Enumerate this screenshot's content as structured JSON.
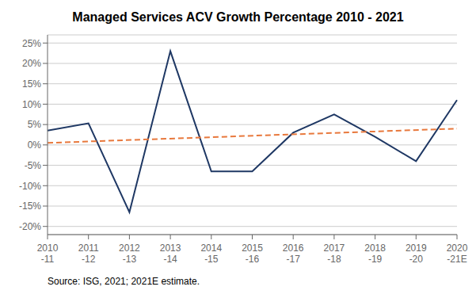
{
  "chart_data": {
    "type": "line",
    "title": "Managed Services ACV Growth Percentage 2010 - 2021",
    "categories": [
      "2010\n-11",
      "2011\n-12",
      "2012\n-13",
      "2013\n-14",
      "2014\n-15",
      "2015\n-16",
      "2016\n-17",
      "2017\n-18",
      "2018\n-19",
      "2019\n-20",
      "2020\n-21E"
    ],
    "series": [
      {
        "color": "#1F3864",
        "line_style": "solid",
        "values": [
          3.5,
          5.3,
          -16.5,
          23.0,
          -6.5,
          -6.5,
          3.0,
          7.5,
          2.0,
          -4.0,
          11.0
        ]
      },
      {
        "color": "#E8783C",
        "line_style": "dashed",
        "values": [
          0.5,
          null,
          null,
          null,
          null,
          null,
          null,
          null,
          null,
          null,
          4.0
        ]
      }
    ],
    "ylim": [
      -22,
      27
    ],
    "yticks": [
      {
        "value": -20,
        "label": "-20%"
      },
      {
        "value": -15,
        "label": "-15%"
      },
      {
        "value": -10,
        "label": "-10%"
      },
      {
        "value": -5,
        "label": "-5%"
      },
      {
        "value": 0,
        "label": "0%"
      },
      {
        "value": 5,
        "label": "5%"
      },
      {
        "value": 10,
        "label": "10%"
      },
      {
        "value": 15,
        "label": "15%"
      },
      {
        "value": 20,
        "label": "20%"
      },
      {
        "value": 25,
        "label": "25%"
      }
    ],
    "grid": true,
    "annotations": [
      "Source: ISG, 2021; 2021E estimate."
    ]
  }
}
